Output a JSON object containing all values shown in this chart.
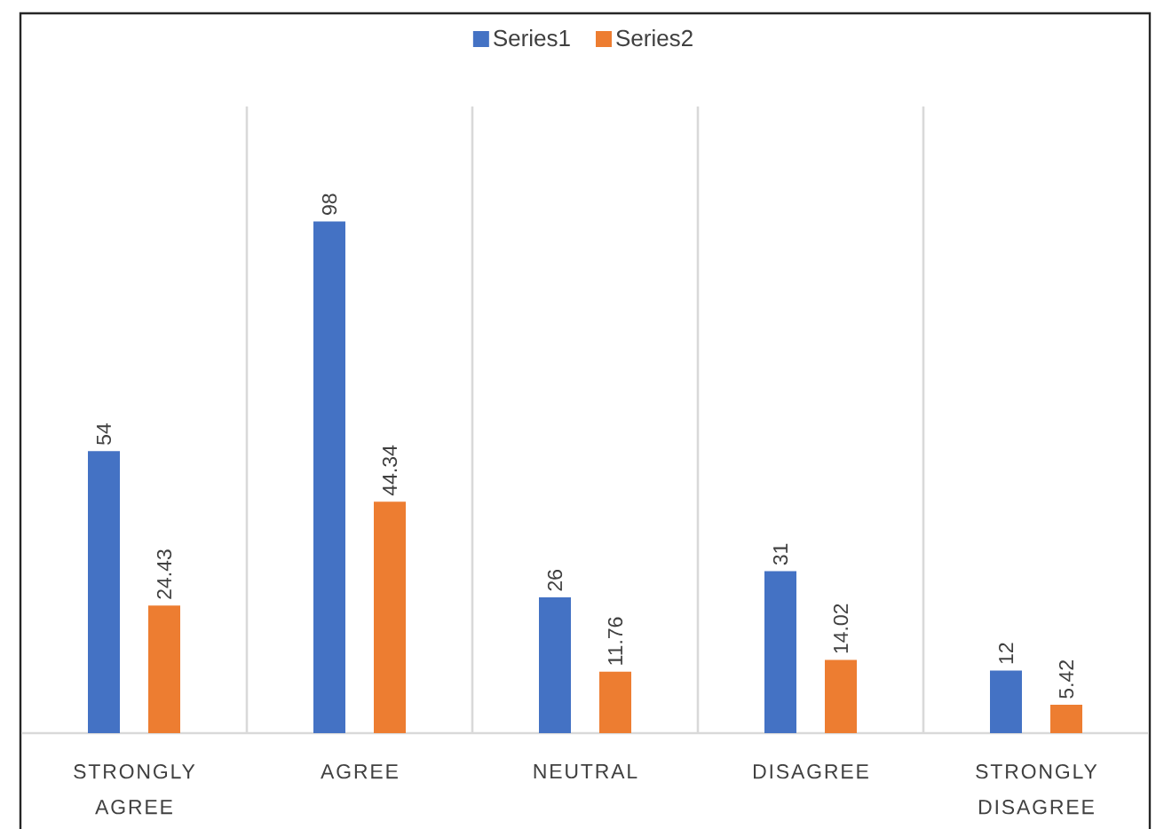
{
  "chart_data": {
    "type": "bar",
    "categories": [
      "STRONGLY AGREE",
      "AGREE",
      "NEUTRAL",
      "DISAGREE",
      "STRONGLY DISAGREE"
    ],
    "series": [
      {
        "name": "Series1",
        "color": "#4472c4",
        "values": [
          54,
          98,
          26,
          31,
          12
        ]
      },
      {
        "name": "Series2",
        "color": "#ed7d31",
        "values": [
          24.43,
          44.34,
          11.76,
          14.02,
          5.42
        ]
      }
    ],
    "ylim": [
      0,
      120
    ],
    "data_labels": true,
    "legend": "top",
    "grid": "x",
    "tick_labels": "x"
  }
}
